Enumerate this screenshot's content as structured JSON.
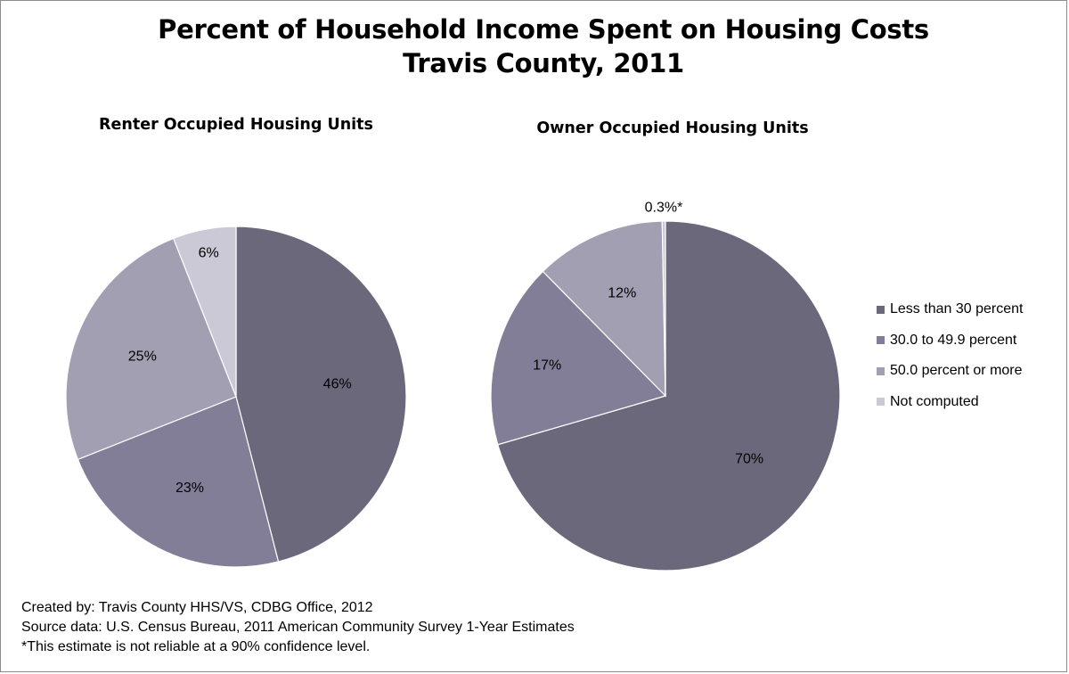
{
  "title_line1": "Percent of Household Income Spent on Housing Costs",
  "title_line2": "Travis County, 2011",
  "colors": {
    "Less than 30 percent": "#6c687c",
    "30.0 to 49.9 percent": "#827e97",
    "50.0 percent or more": "#a29fb3",
    "Not computed": "#cbc9d5"
  },
  "chart_data": [
    {
      "type": "pie",
      "title": "Renter Occupied Housing Units",
      "categories": [
        "Less than 30 percent",
        "30.0 to 49.9 percent",
        "50.0 percent or more",
        "Not computed"
      ],
      "values": [
        46,
        23,
        25,
        6
      ],
      "data_labels": [
        "46%",
        "23%",
        "25%",
        "6%"
      ],
      "legend": "right"
    },
    {
      "type": "pie",
      "title": "Owner Occupied Housing Units",
      "categories": [
        "Less than 30 percent",
        "30.0 to 49.9 percent",
        "50.0 percent or more",
        "Not computed"
      ],
      "values": [
        70,
        17,
        12,
        0.3
      ],
      "data_labels": [
        "70%",
        "17%",
        "12%",
        "0.3%*"
      ],
      "legend": "right"
    }
  ],
  "legend": [
    "Less than 30 percent",
    "30.0 to 49.9 percent",
    "50.0 percent or more",
    "Not computed"
  ],
  "footer": {
    "created_by": "Created by:  Travis County HHS/VS, CDBG Office, 2012",
    "source": "Source data:  U.S. Census Bureau, 2011 American Community Survey 1-Year Estimates",
    "note": "*This estimate is not reliable at a 90% confidence level."
  }
}
